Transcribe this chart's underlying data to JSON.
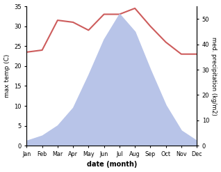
{
  "months": [
    "Jan",
    "Feb",
    "Mar",
    "Apr",
    "May",
    "Jun",
    "Jul",
    "Aug",
    "Sep",
    "Oct",
    "Nov",
    "Dec"
  ],
  "month_x": [
    1,
    2,
    3,
    4,
    5,
    6,
    7,
    8,
    9,
    10,
    11,
    12
  ],
  "temperature": [
    23.5,
    24.0,
    31.5,
    31.0,
    29.0,
    33.0,
    33.0,
    34.5,
    30.0,
    26.0,
    23.0,
    23.0
  ],
  "precipitation": [
    2.0,
    4.0,
    8.0,
    15.0,
    28.0,
    42.0,
    52.0,
    45.0,
    30.0,
    16.0,
    6.0,
    2.0
  ],
  "temp_color": "#cd5c5c",
  "precip_fill_color": "#b8c4e8",
  "temp_ylim": [
    0,
    35
  ],
  "precip_ylim": [
    0,
    55
  ],
  "temp_yticks": [
    0,
    5,
    10,
    15,
    20,
    25,
    30,
    35
  ],
  "precip_yticks": [
    0,
    10,
    20,
    30,
    40,
    50
  ],
  "ylabel_left": "max temp (C)",
  "ylabel_right": "med. precipitation (kg/m2)",
  "xlabel": "date (month)",
  "background_color": "#ffffff"
}
